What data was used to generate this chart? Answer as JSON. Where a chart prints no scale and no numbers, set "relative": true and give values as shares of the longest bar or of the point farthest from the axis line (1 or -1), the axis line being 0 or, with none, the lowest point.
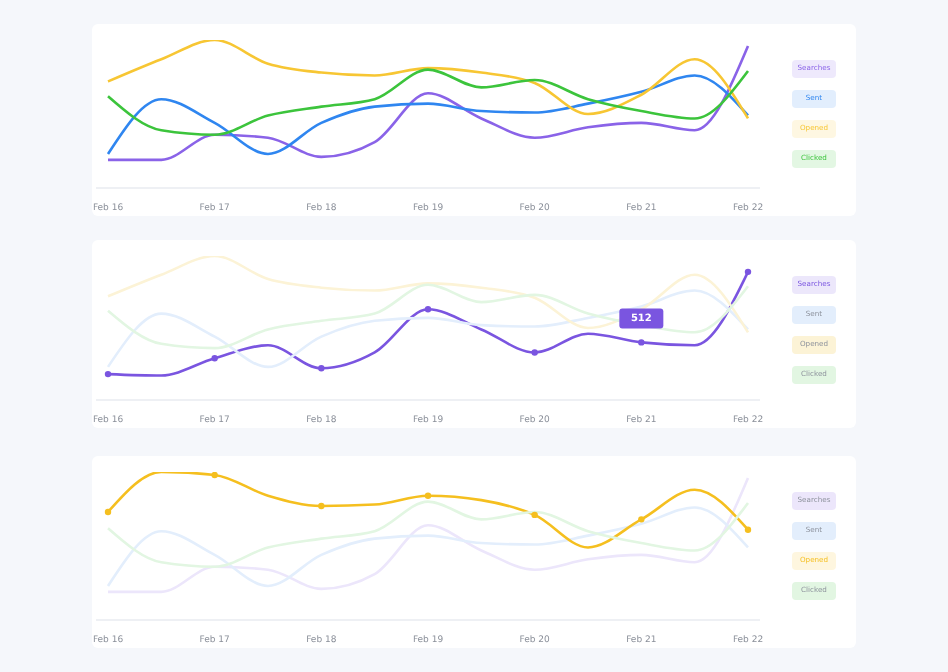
{
  "chart_data": [
    {
      "type": "line",
      "relative": true,
      "legend": "right",
      "categories": [
        "Feb 16",
        null,
        "Feb 17",
        null,
        "Feb 18",
        null,
        "Feb 19",
        null,
        "Feb 20",
        null,
        "Feb 21",
        null,
        "Feb 22"
      ],
      "series": [
        {
          "name": "Searches",
          "color": "#8a63e8",
          "values": [
            0.19,
            0.19,
            0.36,
            0.34,
            0.21,
            0.31,
            0.64,
            0.47,
            0.34,
            0.41,
            0.44,
            0.39,
            0.96
          ]
        },
        {
          "name": "Sent",
          "color": "#2f86f0",
          "values": [
            0.23,
            0.6,
            0.44,
            0.23,
            0.44,
            0.55,
            0.57,
            0.52,
            0.51,
            0.57,
            0.65,
            0.76,
            0.49
          ]
        },
        {
          "name": "Opened",
          "color": "#f7c633",
          "values": [
            0.72,
            0.87,
            1,
            0.84,
            0.78,
            0.76,
            0.81,
            0.78,
            0.71,
            0.5,
            0.63,
            0.87,
            0.47
          ]
        },
        {
          "name": "Clicked",
          "color": "#3cc43c",
          "values": [
            0.62,
            0.39,
            0.36,
            0.49,
            0.55,
            0.6,
            0.8,
            0.68,
            0.73,
            0.6,
            0.52,
            0.47,
            0.79
          ]
        }
      ]
    },
    {
      "type": "line",
      "relative": true,
      "legend": "right",
      "marker": "circle",
      "annotations": [
        {
          "text": "512",
          "x": "Feb 21",
          "y": 0.4
        }
      ],
      "categories": [
        "Feb 16",
        null,
        "Feb 17",
        null,
        "Feb 18",
        null,
        "Feb 19",
        null,
        "Feb 20",
        null,
        "Feb 21",
        null,
        "Feb 22"
      ],
      "series": [
        {
          "name": "Searches",
          "color": "#7a55e0",
          "values": [
            0.18,
            0.17,
            0.29,
            0.38,
            0.22,
            0.33,
            0.63,
            0.49,
            0.33,
            0.46,
            0.4,
            0.38,
            0.89
          ]
        },
        {
          "name": "Sent",
          "color": "#e3eefc",
          "marker": "none",
          "values": [
            0.23,
            0.6,
            0.44,
            0.23,
            0.44,
            0.55,
            0.57,
            0.52,
            0.51,
            0.57,
            0.65,
            0.76,
            0.49
          ]
        },
        {
          "name": "Opened",
          "color": "#fcf3d6",
          "marker": "none",
          "values": [
            0.72,
            0.87,
            1,
            0.84,
            0.78,
            0.76,
            0.81,
            0.78,
            0.71,
            0.5,
            0.63,
            0.87,
            0.47
          ]
        },
        {
          "name": "Clicked",
          "color": "#e2f6e2",
          "marker": "none",
          "values": [
            0.62,
            0.39,
            0.36,
            0.49,
            0.55,
            0.6,
            0.8,
            0.68,
            0.73,
            0.6,
            0.52,
            0.47,
            0.79
          ]
        }
      ]
    },
    {
      "type": "line",
      "relative": true,
      "legend": "right",
      "marker": "circle",
      "categories": [
        "Feb 16",
        null,
        "Feb 17",
        null,
        "Feb 18",
        null,
        "Feb 19",
        null,
        "Feb 20",
        null,
        "Feb 21",
        null,
        "Feb 22"
      ],
      "series": [
        {
          "name": "Searches",
          "color": "#ece6fb",
          "marker": "none",
          "values": [
            0.19,
            0.19,
            0.36,
            0.34,
            0.21,
            0.31,
            0.64,
            0.47,
            0.34,
            0.41,
            0.44,
            0.39,
            0.96
          ]
        },
        {
          "name": "Sent",
          "color": "#e3eefc",
          "marker": "none",
          "values": [
            0.23,
            0.6,
            0.44,
            0.23,
            0.44,
            0.55,
            0.57,
            0.52,
            0.51,
            0.57,
            0.65,
            0.76,
            0.49
          ]
        },
        {
          "name": "Opened",
          "color": "#f5bf1f",
          "values": [
            0.73,
            1,
            0.98,
            0.84,
            0.77,
            0.78,
            0.84,
            0.81,
            0.71,
            0.49,
            0.68,
            0.88,
            0.61
          ]
        },
        {
          "name": "Clicked",
          "color": "#e2f6e2",
          "marker": "none",
          "values": [
            0.62,
            0.39,
            0.36,
            0.49,
            0.55,
            0.6,
            0.8,
            0.68,
            0.73,
            0.6,
            0.52,
            0.47,
            0.79
          ]
        }
      ]
    }
  ]
}
